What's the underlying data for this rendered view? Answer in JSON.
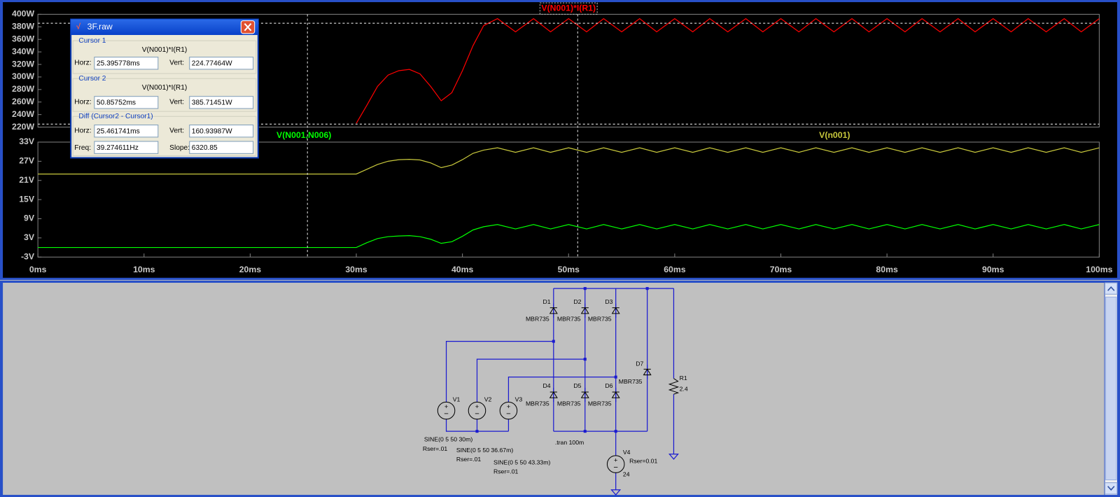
{
  "chart_data": [
    {
      "type": "line",
      "x": [
        0,
        30,
        31,
        32,
        33,
        34,
        35,
        36,
        37,
        38,
        39,
        40,
        41,
        42,
        43.3,
        45,
        46.7,
        48.3,
        50,
        51.7,
        53.3,
        55,
        56.7,
        58.3,
        60,
        61.7,
        63.3,
        65,
        66.7,
        68.3,
        70,
        71.7,
        73.3,
        75,
        76.7,
        78.3,
        80,
        81.7,
        83.3,
        85,
        86.7,
        88.3,
        90,
        91.7,
        93.3,
        95,
        96.7,
        98.3,
        100
      ],
      "xlim": [
        0,
        100
      ],
      "ylim": [
        220,
        400
      ],
      "yticks": [
        {
          "value": 220,
          "label": "220W"
        },
        {
          "value": 240,
          "label": "240W"
        },
        {
          "value": 260,
          "label": "260W"
        },
        {
          "value": 280,
          "label": "280W"
        },
        {
          "value": 300,
          "label": "300W"
        },
        {
          "value": 320,
          "label": "320W"
        },
        {
          "value": 340,
          "label": "340W"
        },
        {
          "value": 360,
          "label": "360W"
        },
        {
          "value": 380,
          "label": "380W"
        },
        {
          "value": 400,
          "label": "400W"
        }
      ],
      "grid": false,
      "series": [
        {
          "name": "V(N001)*I(R1)",
          "color": "#ff0000",
          "values": [
            null,
            226,
            255,
            285,
            303,
            310,
            312,
            305,
            285,
            262,
            275,
            310,
            350,
            382,
            393,
            372,
            393,
            372,
            393,
            372,
            393,
            372,
            393,
            372,
            393,
            372,
            393,
            372,
            393,
            372,
            393,
            372,
            393,
            372,
            393,
            372,
            393,
            372,
            393,
            372,
            393,
            372,
            393,
            372,
            393,
            372,
            393,
            372,
            393
          ]
        }
      ]
    },
    {
      "type": "line",
      "x": [
        0,
        30,
        31,
        32,
        33,
        34,
        35,
        36,
        37,
        38,
        39,
        40,
        41,
        42,
        43.3,
        45,
        46.7,
        48.3,
        50,
        51.7,
        53.3,
        55,
        56.7,
        58.3,
        60,
        61.7,
        63.3,
        65,
        66.7,
        68.3,
        70,
        71.7,
        73.3,
        75,
        76.7,
        78.3,
        80,
        81.7,
        83.3,
        85,
        86.7,
        88.3,
        90,
        91.7,
        93.3,
        95,
        96.7,
        98.3,
        100
      ],
      "xlim": [
        0,
        100
      ],
      "xticks": [
        {
          "value": 0,
          "label": "0ms"
        },
        {
          "value": 10,
          "label": "10ms"
        },
        {
          "value": 20,
          "label": "20ms"
        },
        {
          "value": 30,
          "label": "30ms"
        },
        {
          "value": 40,
          "label": "40ms"
        },
        {
          "value": 50,
          "label": "50ms"
        },
        {
          "value": 60,
          "label": "60ms"
        },
        {
          "value": 70,
          "label": "70ms"
        },
        {
          "value": 80,
          "label": "80ms"
        },
        {
          "value": 90,
          "label": "90ms"
        },
        {
          "value": 100,
          "label": "100ms"
        }
      ],
      "ylim": [
        -3,
        33
      ],
      "yticks": [
        {
          "value": -3,
          "label": "-3V"
        },
        {
          "value": 3,
          "label": "3V"
        },
        {
          "value": 9,
          "label": "9V"
        },
        {
          "value": 15,
          "label": "15V"
        },
        {
          "value": 21,
          "label": "21V"
        },
        {
          "value": 27,
          "label": "27V"
        },
        {
          "value": 33,
          "label": "33V"
        }
      ],
      "grid": false,
      "series": [
        {
          "name": "V(N001,N006)",
          "color": "#00ff00",
          "values": [
            0,
            0,
            1.5,
            2.8,
            3.4,
            3.6,
            3.7,
            3.4,
            2.6,
            1.3,
            1.8,
            3.5,
            5.5,
            6.5,
            7.2,
            5.8,
            7.2,
            5.8,
            7.2,
            5.8,
            7.2,
            5.8,
            7.2,
            5.8,
            7.2,
            5.8,
            7.2,
            5.8,
            7.2,
            5.8,
            7.2,
            5.8,
            7.2,
            5.8,
            7.2,
            5.8,
            7.2,
            5.8,
            7.2,
            5.8,
            7.2,
            5.8,
            7.2,
            5.8,
            7.2,
            5.8,
            7.2,
            5.8,
            7.2
          ]
        },
        {
          "name": "V(n001)",
          "color": "#c8c83c",
          "values": [
            23,
            23,
            24.5,
            26,
            27,
            27.5,
            27.6,
            27.4,
            26.5,
            25,
            25.8,
            27.5,
            29.5,
            30.5,
            31.2,
            29.8,
            31.2,
            29.8,
            31.2,
            29.8,
            31.2,
            29.8,
            31.2,
            29.8,
            31.2,
            29.8,
            31.2,
            29.8,
            31.2,
            29.8,
            31.2,
            29.8,
            31.2,
            29.8,
            31.2,
            29.8,
            31.2,
            29.8,
            31.2,
            29.8,
            31.2,
            29.8,
            31.2,
            29.8,
            31.2,
            29.8,
            31.2,
            29.8,
            31.2
          ]
        }
      ]
    }
  ],
  "dialog": {
    "title": "3F.raw",
    "cursor1": {
      "group": "Cursor 1",
      "trace": "V(N001)*I(R1)",
      "horz_label": "Horz:",
      "vert_label": "Vert:",
      "horz": {
        "value": 25.395778,
        "label": "25.395778ms"
      },
      "vert": {
        "value": 224.77464,
        "label": "224.77464W"
      }
    },
    "cursor2": {
      "group": "Cursor 2",
      "trace": "V(N001)*I(R1)",
      "horz_label": "Horz:",
      "vert_label": "Vert:",
      "horz": {
        "value": 50.85752,
        "label": "50.85752ms"
      },
      "vert": {
        "value": 385.71451,
        "label": "385.71451W"
      }
    },
    "diff": {
      "group": "Diff (Cursor2 - Cursor1)",
      "horz_label": "Horz:",
      "vert_label": "Vert:",
      "freq_label": "Freq:",
      "slope_label": "Slope:",
      "horz": "25.461741ms",
      "vert": "160.93987W",
      "freq": "39.274611Hz",
      "slope": "6320.85"
    }
  },
  "schematic": {
    "labels": [
      "D1",
      "D2",
      "D3",
      "MBR735",
      "MBR735",
      "MBR735",
      "D4",
      "D5",
      "D6",
      "MBR735",
      "MBR735",
      "MBR735",
      "D7",
      "MBR735",
      "R1",
      "2.4",
      "V1",
      "V2",
      "V3",
      "V4",
      "24",
      "Rser=0.01",
      "SINE(0 5 50 30m)",
      "Rser=.01",
      "SINE(0 5 50 36.67m)",
      "Rser=.01",
      "SINE(0 5 50 43.33m)",
      "Rser=.01",
      ".tran 100m"
    ]
  }
}
